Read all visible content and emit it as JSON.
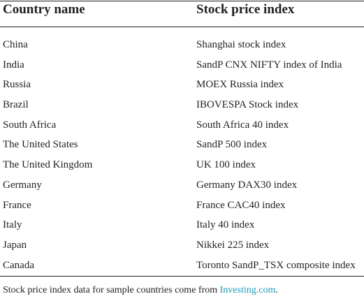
{
  "table": {
    "headers": [
      "Country name",
      "Stock price index"
    ],
    "rows": [
      [
        "China",
        "Shanghai stock index"
      ],
      [
        "India",
        "SandP CNX NIFTY index of India"
      ],
      [
        "Russia",
        "MOEX Russia index"
      ],
      [
        "Brazil",
        "IBOVESPA Stock index"
      ],
      [
        "South Africa",
        "South Africa 40 index"
      ],
      [
        "The United States",
        "SandP 500 index"
      ],
      [
        "The United Kingdom",
        "UK 100 index"
      ],
      [
        "Germany",
        "Germany DAX30 index"
      ],
      [
        "France",
        "France CAC40 index"
      ],
      [
        "Italy",
        "Italy 40 index"
      ],
      [
        "Japan",
        "Nikkei 225 index"
      ],
      [
        "Canada",
        "Toronto SandP_TSX composite index"
      ]
    ]
  },
  "footnote": {
    "text_before": "Stock price index data for sample countries come from ",
    "link_text": "Investing.com",
    "text_after": ".",
    "link_color": "#1a9bb8"
  }
}
